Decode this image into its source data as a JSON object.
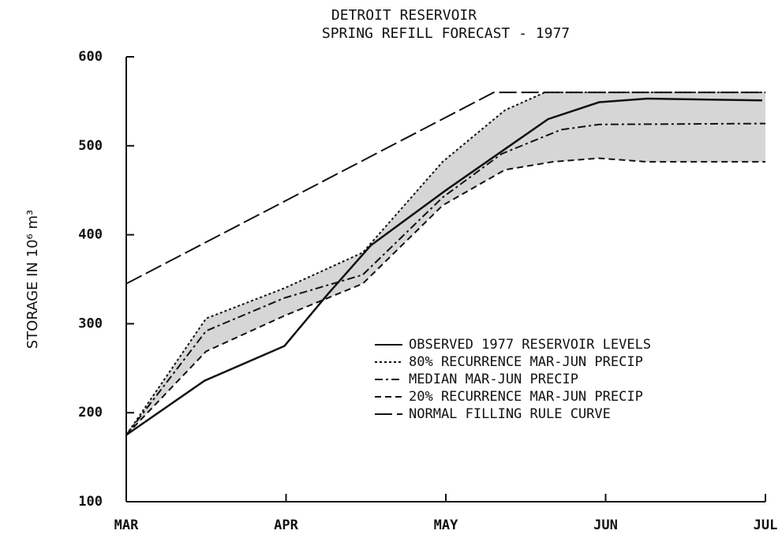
{
  "chart_data": {
    "type": "line",
    "title": "DETROIT RESERVOIR",
    "subtitle": "SPRING REFILL FORECAST - 1977",
    "y_label": "STORAGE IN 10⁶ m³",
    "xlim": [
      0,
      4
    ],
    "xticks": [
      {
        "value": 0,
        "label": "MAR"
      },
      {
        "value": 1,
        "label": "APR"
      },
      {
        "value": 2,
        "label": "MAY"
      },
      {
        "value": 3,
        "label": "JUN"
      },
      {
        "value": 4,
        "label": "JUL"
      }
    ],
    "ylim": [
      100,
      600
    ],
    "yticks": [
      100,
      200,
      300,
      400,
      500,
      600
    ],
    "band": {
      "series": [
        1,
        3
      ],
      "color": "#d6d6d6"
    },
    "series": [
      {
        "name": "OBSERVED 1977 RESERVOIR LEVELS",
        "color": "#111111",
        "dash": "none",
        "x": [
          0,
          0.49,
          0.99,
          1.26,
          1.53,
          2.0,
          2.32,
          2.64,
          2.96,
          3.26,
          3.98
        ],
        "values": [
          175,
          236,
          275,
          333,
          388,
          450,
          490,
          530,
          549,
          553,
          551
        ]
      },
      {
        "name": "80% RECURRENCE MAR-JUN PRECIP",
        "color": "#111111",
        "dash": "3 3",
        "x": [
          0,
          0.5,
          0.99,
          1.48,
          1.98,
          2.37,
          2.62,
          4
        ],
        "values": [
          175,
          306,
          340,
          380,
          482,
          540,
          560,
          560
        ]
      },
      {
        "name": "MEDIAN MAR-JUN PRECIP",
        "color": "#111111",
        "dash": "10 4 3 4",
        "x": [
          0,
          0.5,
          0.99,
          1.48,
          1.98,
          2.35,
          2.72,
          2.96,
          4
        ],
        "values": [
          175,
          292,
          329,
          355,
          442,
          491,
          518,
          524,
          525
        ]
      },
      {
        "name": "20% RECURRENCE MAR-JUN PRECIP",
        "color": "#111111",
        "dash": "8 5",
        "x": [
          0,
          0.5,
          0.99,
          1.48,
          1.98,
          2.37,
          2.67,
          2.96,
          3.26,
          4
        ],
        "values": [
          175,
          269,
          309,
          345,
          433,
          473,
          482,
          486,
          482,
          482
        ]
      },
      {
        "name": "NORMAL FILLING RULE CURVE",
        "color": "#111111",
        "dash": "22 6",
        "x": [
          0,
          2.3,
          4
        ],
        "values": [
          345,
          560,
          560
        ]
      }
    ]
  }
}
